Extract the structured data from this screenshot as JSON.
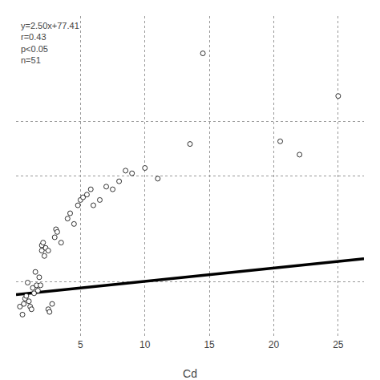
{
  "chart_data": {
    "type": "scatter",
    "xlabel": "Cd",
    "annotation": "y=2.50x+77.41\nr=0.43\np<0.05\nn=51",
    "xlim": [
      0,
      27
    ],
    "ylim": [
      0,
      600
    ],
    "xticks": [
      5,
      10,
      15,
      20,
      25
    ],
    "yticks": [
      102,
      300,
      402
    ],
    "tick_labels": "x",
    "grid": true,
    "series": [
      {
        "type": "scatter",
        "color": "white",
        "marker": "circle",
        "x": [
          0.3,
          0.5,
          0.6,
          0.7,
          0.8,
          0.9,
          1.0,
          1.1,
          1.2,
          1.3,
          1.4,
          1.5,
          1.6,
          1.7,
          1.8,
          1.9,
          2.0,
          2.0,
          2.1,
          2.2,
          2.3,
          2.5,
          2.6,
          2.8,
          3.0,
          3.1,
          3.2,
          3.5,
          4.0,
          4.2,
          4.5,
          4.8,
          5.0,
          5.2,
          5.5,
          5.8,
          6.0,
          6.5,
          7.0,
          7.5,
          8.0,
          8.5,
          9.0,
          10.0,
          11.0,
          13.5,
          14.5,
          20.5,
          22.0,
          25.0,
          2.5
        ],
        "values": [
          55,
          40,
          60,
          70,
          75,
          100,
          65,
          55,
          50,
          90,
          80,
          120,
          95,
          85,
          110,
          95,
          160,
          170,
          175,
          150,
          165,
          50,
          45,
          60,
          185,
          200,
          195,
          175,
          220,
          230,
          210,
          245,
          255,
          260,
          265,
          275,
          245,
          255,
          280,
          275,
          290,
          310,
          305,
          315,
          295,
          360,
          530,
          365,
          340,
          450,
          160
        ]
      },
      {
        "type": "line",
        "color": "black",
        "line_style": "solid",
        "x": [
          0,
          27
        ],
        "values": [
          77.41,
          144.91
        ]
      }
    ]
  }
}
